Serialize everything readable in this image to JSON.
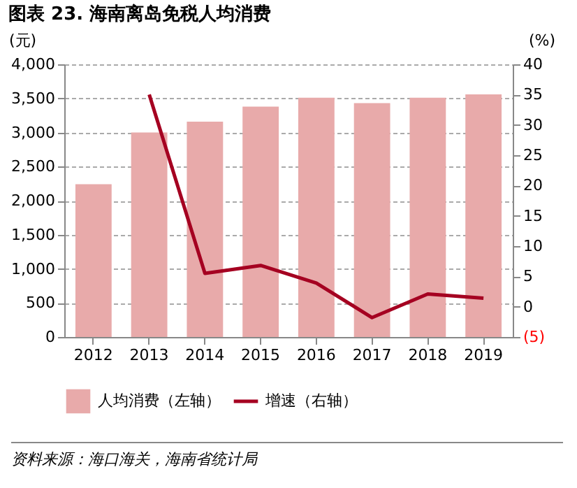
{
  "chart_data": {
    "type": "bar",
    "title": "图表 23. 海南离岛免税人均消费",
    "ylabel": "(元)",
    "y2label": "(%)",
    "categories": [
      "2012",
      "2013",
      "2014",
      "2015",
      "2016",
      "2017",
      "2018",
      "2019"
    ],
    "series": [
      {
        "name": "人均消费（左轴）",
        "color": "#e8aaaa",
        "values": [
          2240,
          3000,
          3160,
          3380,
          3510,
          3430,
          3510,
          3560
        ]
      },
      {
        "name": "增速（右轴）",
        "type": "line",
        "axis": "y2",
        "color": "#a50021",
        "values": [
          null,
          35,
          5.5,
          6.8,
          3.9,
          -1.8,
          2.1,
          1.4
        ]
      }
    ],
    "ylim": [
      0,
      4000
    ],
    "yticks": [
      0,
      500,
      {
        "value": 1000,
        "label": "1,000"
      },
      {
        "value": 1500,
        "label": "1,500"
      },
      {
        "value": 2000,
        "label": "2,000"
      },
      {
        "value": 2500,
        "label": "2,500"
      },
      {
        "value": 3000,
        "label": "3,000"
      },
      {
        "value": 3500,
        "label": "3,500"
      },
      {
        "value": 4000,
        "label": "4,000"
      }
    ],
    "y2lim": [
      -5,
      40
    ],
    "y2ticks": [
      {
        "value": -5,
        "label": "(5)"
      },
      0,
      5,
      10,
      15,
      20,
      25,
      30,
      35,
      40
    ],
    "grid": "y",
    "legend": "bottom",
    "annotations": [
      "资料来源：海口海关，海南省统计局"
    ]
  }
}
